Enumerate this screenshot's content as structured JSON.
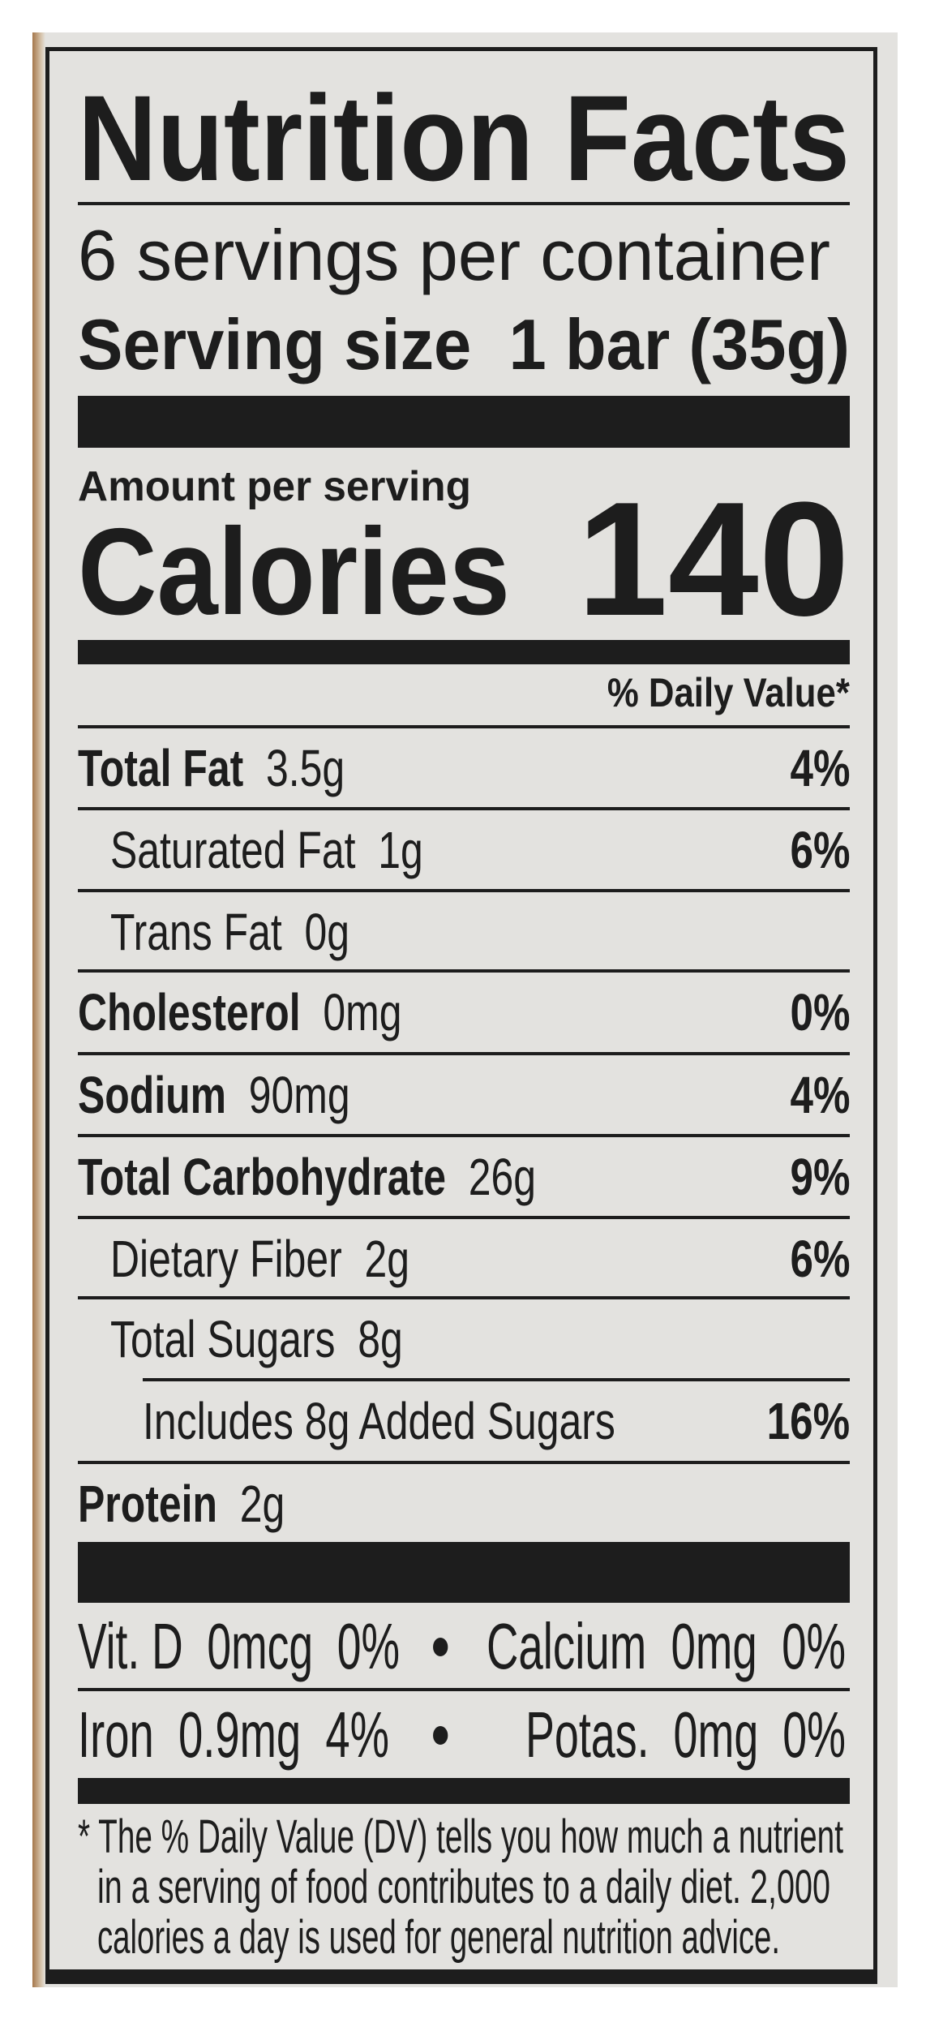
{
  "label": {
    "title": "Nutrition Facts",
    "servings_per_container": "6 servings per container",
    "serving_size_label": "Serving size",
    "serving_size_value": "1 bar (35g)",
    "amount_per_serving": "Amount per serving",
    "calories_label": "Calories",
    "calories_value": "140",
    "dv_header": "% Daily Value*",
    "nutrients": [
      {
        "name": "Total Fat",
        "amount": "3.5g",
        "dv": "4%",
        "bold": true,
        "indent": 0
      },
      {
        "name": "Saturated Fat",
        "amount": "1g",
        "dv": "6%",
        "bold": false,
        "indent": 1
      },
      {
        "name": "Trans Fat",
        "amount": "0g",
        "dv": "",
        "bold": false,
        "indent": 1
      },
      {
        "name": "Cholesterol",
        "amount": "0mg",
        "dv": "0%",
        "bold": true,
        "indent": 0
      },
      {
        "name": "Sodium",
        "amount": "90mg",
        "dv": "4%",
        "bold": true,
        "indent": 0
      },
      {
        "name": "Total Carbohydrate",
        "amount": "26g",
        "dv": "9%",
        "bold": true,
        "indent": 0
      },
      {
        "name": "Dietary Fiber",
        "amount": "2g",
        "dv": "6%",
        "bold": false,
        "indent": 1
      },
      {
        "name": "Total Sugars",
        "amount": "8g",
        "dv": "",
        "bold": false,
        "indent": 1
      },
      {
        "name": "Includes 8g Added Sugars",
        "amount": "",
        "dv": "16%",
        "bold": false,
        "indent": 2
      },
      {
        "name": "Protein",
        "amount": "2g",
        "dv": "",
        "bold": true,
        "indent": 0
      }
    ],
    "vitamins": [
      {
        "left": "Vit. D  0mcg  0%",
        "right": "Calcium  0mg  0%"
      },
      {
        "left": "Iron  0.9mg  4%",
        "right": "Potas.  0mg  0%"
      }
    ],
    "separator": "•",
    "footnote": [
      "* The % Daily Value (DV) tells you how much a nutrient",
      "in a serving of food contributes to a daily diet. 2,000",
      "calories a day is used for general nutrition advice."
    ]
  },
  "colors": {
    "ink": "#1d1d1d",
    "paper": "#e3e2df"
  }
}
